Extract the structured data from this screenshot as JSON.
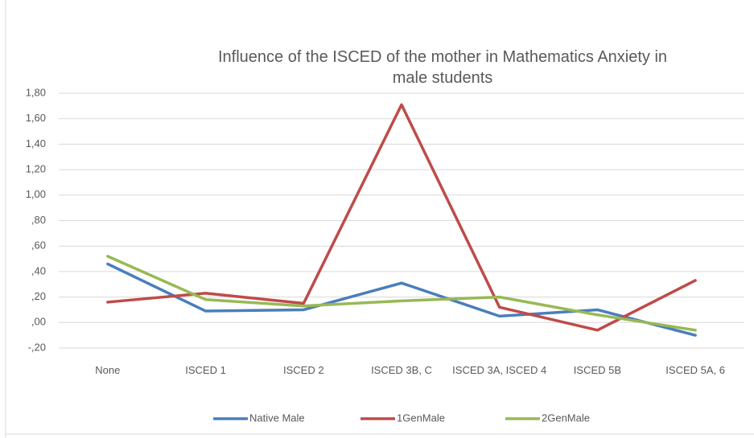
{
  "chart_data": {
    "type": "line",
    "title": "Influence of the ISCED of the mother in Mathematics Anxiety in male students",
    "categories": [
      "None",
      "ISCED 1",
      "ISCED 2",
      "ISCED 3B, C",
      "ISCED 3A, ISCED 4",
      "ISCED 5B",
      "ISCED 5A, 6"
    ],
    "series": [
      {
        "name": "Native Male",
        "color": "#4a7ebb",
        "values": [
          0.46,
          0.09,
          0.1,
          0.31,
          0.05,
          0.1,
          -0.1
        ]
      },
      {
        "name": "1GenMale",
        "color": "#be4b48",
        "values": [
          0.16,
          0.23,
          0.15,
          1.71,
          0.12,
          -0.06,
          0.33
        ]
      },
      {
        "name": "2GenMale",
        "color": "#98b954",
        "values": [
          0.52,
          0.18,
          0.13,
          0.17,
          0.2,
          0.06,
          -0.06
        ]
      }
    ],
    "ylim": [
      -0.2,
      1.8
    ],
    "yticks": [
      {
        "value": -0.2,
        "label": "-,20"
      },
      {
        "value": 0,
        "label": ",00"
      },
      {
        "value": 0.2,
        "label": ",20"
      },
      {
        "value": 0.4,
        "label": ",40"
      },
      {
        "value": 0.6,
        "label": ",60"
      },
      {
        "value": 0.8,
        "label": ",80"
      },
      {
        "value": 1.0,
        "label": "1,00"
      },
      {
        "value": 1.2,
        "label": "1,20"
      },
      {
        "value": 1.4,
        "label": "1,40"
      },
      {
        "value": 1.6,
        "label": "1,60"
      },
      {
        "value": 1.8,
        "label": "1,80"
      }
    ],
    "grid": true,
    "legend": "bottom"
  }
}
